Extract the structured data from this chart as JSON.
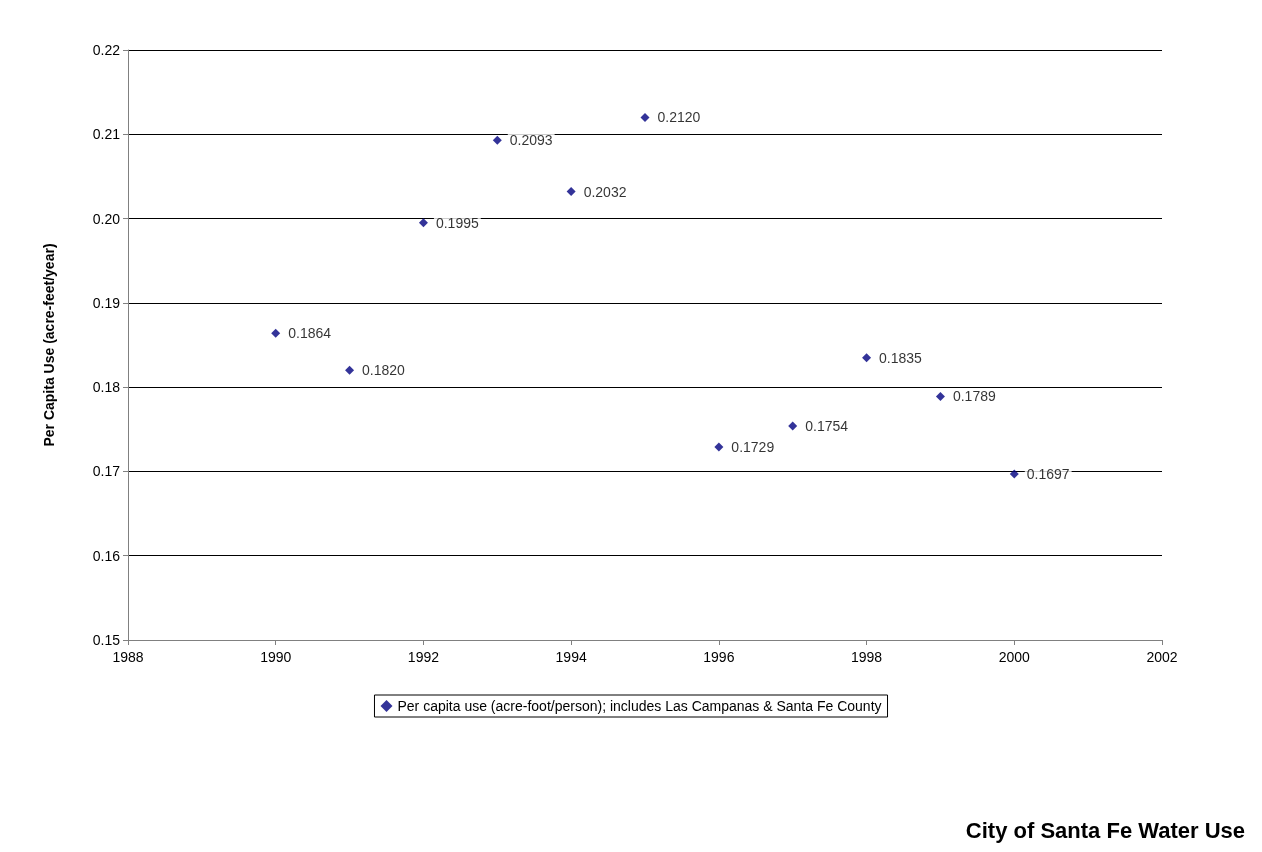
{
  "chart_data": {
    "type": "scatter",
    "title": "City of Santa Fe Water Use",
    "ylabel": "Per Capita Use (acre-feet/year)",
    "x": [
      1990,
      1991,
      1992,
      1993,
      1994,
      1995,
      1996,
      1997,
      1998,
      1999,
      2000
    ],
    "series": [
      {
        "name": "Per capita use (acre-foot/person); includes Las Campanas & Santa Fe County",
        "color": "#000080",
        "values": [
          0.1864,
          0.182,
          0.1995,
          0.2093,
          0.2032,
          0.212,
          0.1729,
          0.1754,
          0.1835,
          0.1789,
          0.1697
        ],
        "value_labels": [
          "0.1864",
          "0.1820",
          "0.1995",
          "0.2093",
          "0.2032",
          "0.2120",
          "0.1729",
          "0.1754",
          "0.1835",
          "0.1789",
          "0.1697"
        ]
      }
    ],
    "xlim": [
      1988,
      2002
    ],
    "xticks": [
      1988,
      1990,
      1992,
      1994,
      1996,
      1998,
      2000,
      2002
    ],
    "ylim": [
      0.15,
      0.22
    ],
    "yticks": [
      0.15,
      0.16,
      0.17,
      0.18,
      0.19,
      {
        "value": 0.2,
        "label": "0.20"
      },
      0.21,
      0.22
    ],
    "grid": "y",
    "legend": "bottom",
    "marker": "diamond"
  }
}
